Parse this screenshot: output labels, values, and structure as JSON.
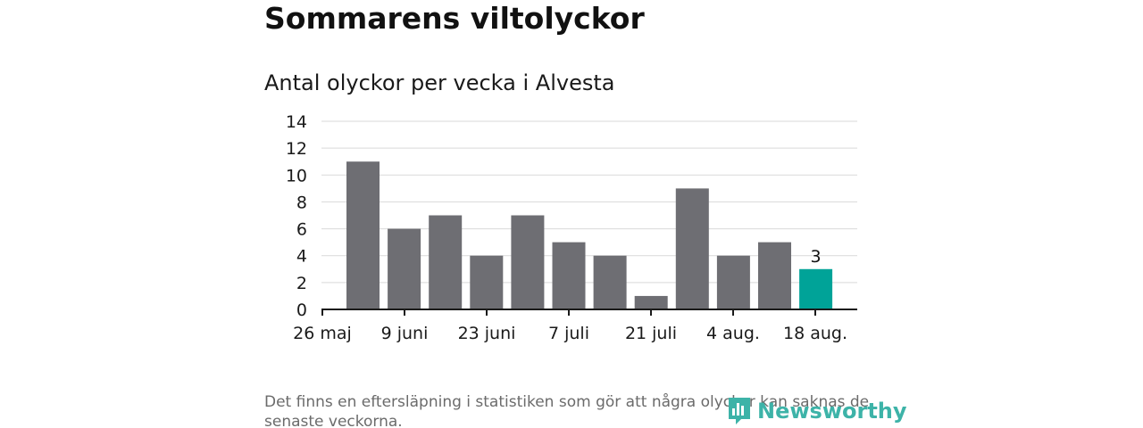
{
  "title": "Sommarens viltolyckor",
  "subtitle": "Antal olyckor per vecka i Alvesta",
  "footnote": "Det finns en eftersläpning i statistiken som gör att några olyckor kan saknas de senaste veckorna.",
  "logo_text": "Newsworthy",
  "colors": {
    "bar": "#6e6e73",
    "highlight": "#00a398",
    "grid": "#d9d9d9",
    "axis": "#1a1a1a",
    "logo": "#3db3a8"
  },
  "chart_data": {
    "type": "bar",
    "title": "Antal olyckor per vecka i Alvesta",
    "xlabel": "",
    "ylabel": "",
    "ylim": [
      0,
      14
    ],
    "yticks": [
      0,
      2,
      4,
      6,
      8,
      10,
      12,
      14
    ],
    "xtick_labels": [
      "26 maj",
      "9 juni",
      "23 juni",
      "7 juli",
      "21 juli",
      "4 aug.",
      "18 aug."
    ],
    "values": [
      11,
      6,
      7,
      4,
      7,
      5,
      4,
      1,
      9,
      4,
      5,
      3
    ],
    "highlight_index": 11,
    "data_labels": [
      {
        "index": 11,
        "text": "3"
      }
    ],
    "grid": true
  }
}
